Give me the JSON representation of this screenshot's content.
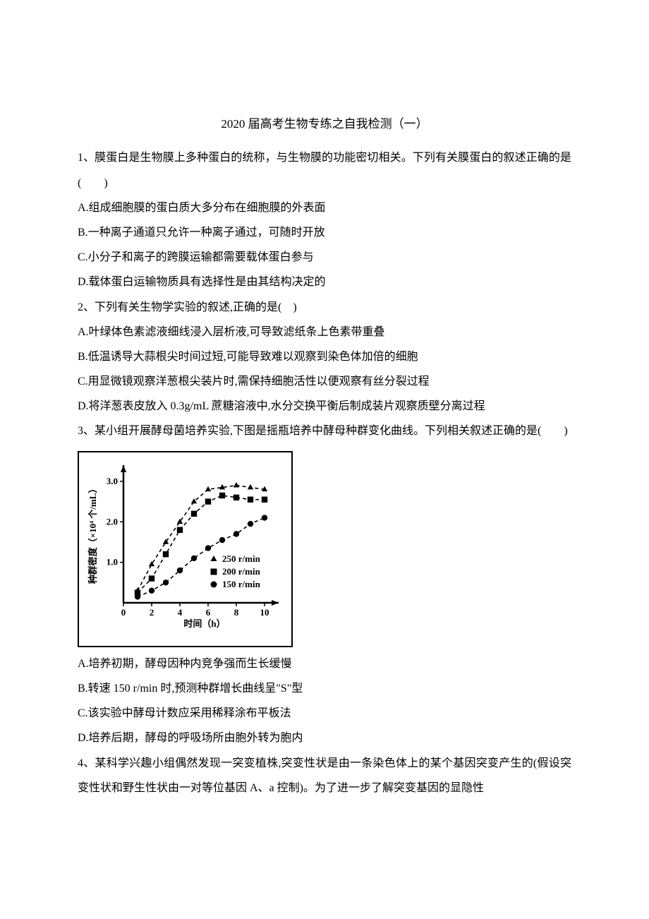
{
  "title": "2020 届高考生物专练之自我检测（一）",
  "q1": {
    "stem": "1、膜蛋白是生物膜上多种蛋白的统称，与生物膜的功能密切相关。下列有关膜蛋白的叙述正确的是(　　)",
    "A": "A.组成细胞膜的蛋白质大多分布在细胞膜的外表面",
    "B": "B.一种离子通道只允许一种离子通过，可随时开放",
    "C": "C.小分子和离子的跨膜运输都需要载体蛋白参与",
    "D": "D.载体蛋白运输物质具有选择性是由其结构决定的"
  },
  "q2": {
    "stem": "2、下列有关生物学实验的叙述,正确的是(　)",
    "A": "A.叶绿体色素滤液细线浸入层析液,可导致滤纸条上色素带重叠",
    "B": "B.低温诱导大蒜根尖时间过短,可能导致难以观察到染色体加倍的细胞",
    "C": "C.用显微镜观察洋葱根尖装片时,需保持细胞活性以便观察有丝分裂过程",
    "D": "D.将洋葱表皮放入 0.3g/mL 蔗糖溶液中,水分交换平衡后制成装片观察质壁分离过程"
  },
  "q3": {
    "stem": "3、某小组开展酵母菌培养实验,下图是摇瓶培养中酵母种群变化曲线。下列相关叙述正确的是(　　)",
    "A": "A.培养初期，酵母因种内竞争强而生长缓慢",
    "B": "B.转速 150 r/min 时,预测种群增长曲线呈\"S\"型",
    "C": "C.该实验中酵母计数应采用稀释涂布平板法",
    "D": "D.培养后期，酵母的呼吸场所由胞外转为胞内"
  },
  "q4": {
    "stem": "4、某科学兴趣小组偶然发现一突变植株,突变性状是由一条染色体上的某个基因突变产生的(假设突变性状和野生性状由一对等位基因 A、a 控制)。为了进一步了解突变基因的显隐性"
  },
  "chart": {
    "type": "line-scatter",
    "y_axis_label": "种群密度（×10⁴ 个/mL）",
    "x_axis_label": "时间（h）",
    "x_ticks": [
      0,
      2,
      4,
      6,
      8,
      10
    ],
    "y_ticks": [
      0,
      1.0,
      2.0,
      3.0
    ],
    "x_range": [
      0,
      11
    ],
    "y_range": [
      0,
      3.4
    ],
    "axis_color": "#000000",
    "grid_color": "#ffffff",
    "line_dash": "5,4",
    "series": [
      {
        "name": "250 r/min",
        "marker": "triangle",
        "color": "#000000",
        "points": [
          [
            1,
            0.3
          ],
          [
            2,
            0.95
          ],
          [
            3,
            1.5
          ],
          [
            4,
            2.0
          ],
          [
            5,
            2.5
          ],
          [
            6,
            2.8
          ],
          [
            7,
            2.85
          ],
          [
            8,
            2.9
          ],
          [
            9,
            2.85
          ],
          [
            10,
            2.8
          ]
        ]
      },
      {
        "name": "200 r/min",
        "marker": "square",
        "color": "#000000",
        "points": [
          [
            1,
            0.25
          ],
          [
            2,
            0.6
          ],
          [
            3,
            1.2
          ],
          [
            4,
            1.8
          ],
          [
            5,
            2.2
          ],
          [
            6,
            2.5
          ],
          [
            7,
            2.65
          ],
          [
            8,
            2.6
          ],
          [
            9,
            2.55
          ],
          [
            10,
            2.55
          ]
        ]
      },
      {
        "name": "150 r/min",
        "marker": "circle",
        "color": "#000000",
        "points": [
          [
            1,
            0.15
          ],
          [
            2,
            0.3
          ],
          [
            3,
            0.5
          ],
          [
            4,
            0.8
          ],
          [
            5,
            1.1
          ],
          [
            6,
            1.35
          ],
          [
            7,
            1.55
          ],
          [
            8,
            1.7
          ],
          [
            9,
            1.95
          ],
          [
            10,
            2.1
          ]
        ]
      }
    ],
    "legend_items": [
      {
        "marker": "triangle",
        "label": "250 r/min"
      },
      {
        "marker": "square",
        "label": "200 r/min"
      },
      {
        "marker": "circle",
        "label": "150 r/min"
      }
    ],
    "tick_fontsize": 13,
    "label_fontsize": 13
  }
}
